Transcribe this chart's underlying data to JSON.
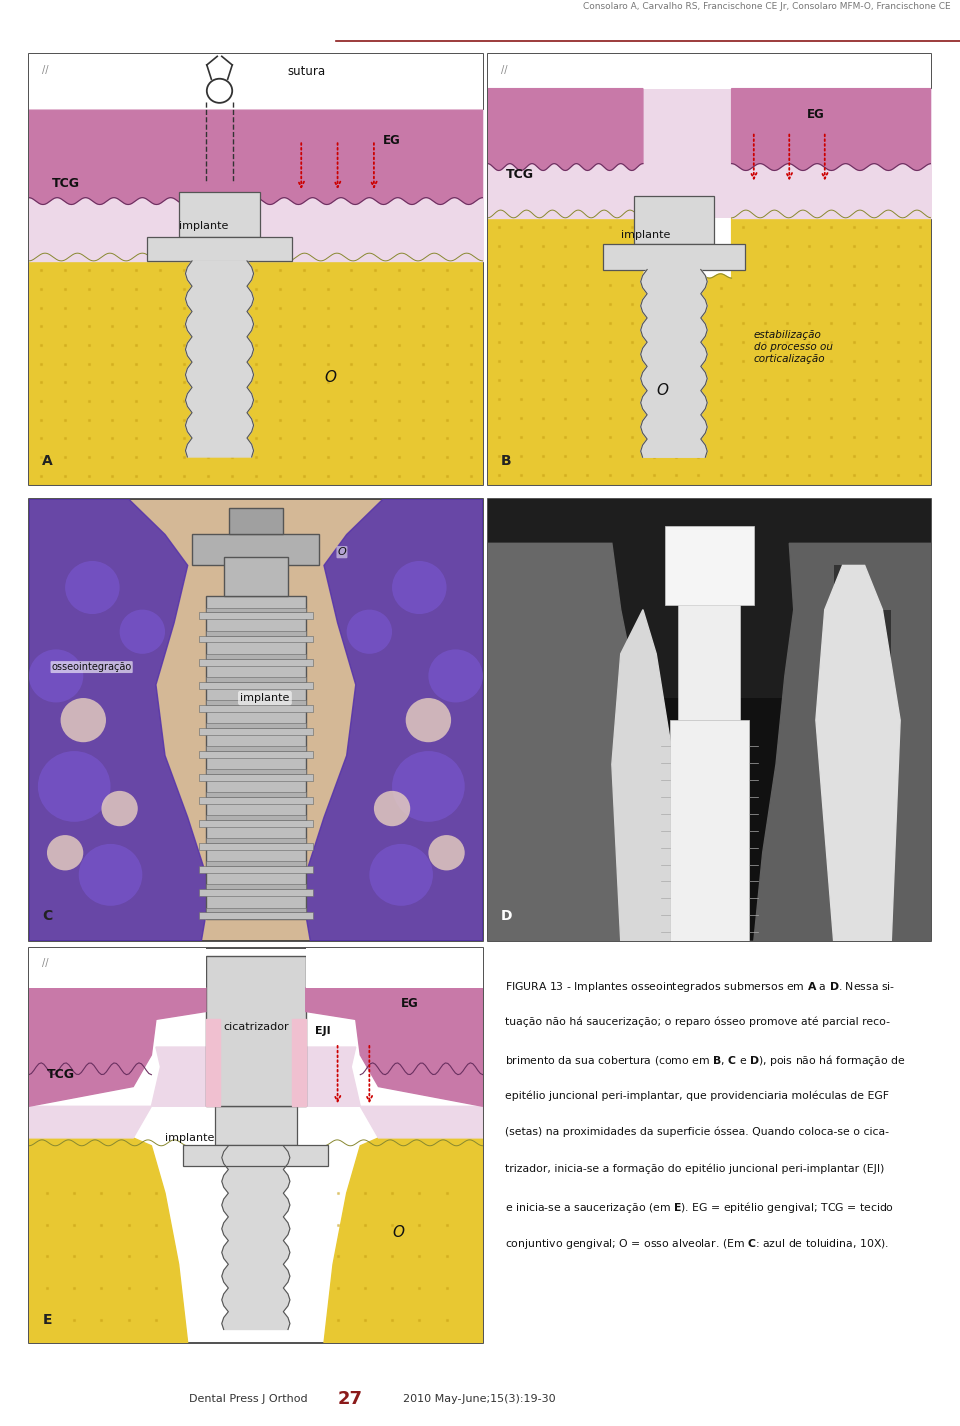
{
  "header_text": "Consolaro A, Carvalho RS, Francischone CE Jr, Consolaro MFM-O, Francischone CE",
  "header_color": "#777777",
  "header_line_color": "#8B1A1A",
  "footer_journal": "Dental Press J Orthod",
  "footer_page": "27",
  "footer_page_color": "#8B1A1A",
  "footer_year": "2010 May-June;15(3):19-30",
  "bg_color": "#FFFFFF",
  "panel_border_color": "#333333",
  "EG_color": "#C879A8",
  "TCG_color": "#E8C8D8",
  "bone_color": "#E8C832",
  "bone_texture_color": "#C8A820",
  "implant_color": "#D8D8D8",
  "implant_border": "#555555",
  "arrow_color": "#CC0000",
  "white_bg": "#F5F5F5"
}
